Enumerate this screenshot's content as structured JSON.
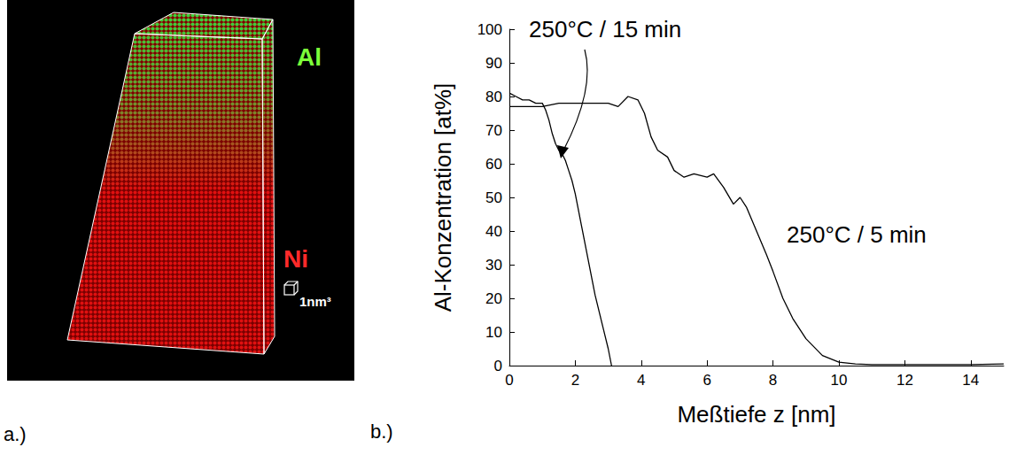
{
  "panels": {
    "a": {
      "label": "a.)",
      "image": {
        "top_label": "Al",
        "bottom_label": "Ni",
        "scale_label": "1nm³"
      }
    },
    "b": {
      "label": "b.)"
    }
  },
  "chart_data": {
    "type": "line",
    "x_label": "Meßtiefe z [nm]",
    "y_label": "Al-Konzentration [at%]",
    "xlim": [
      0,
      15
    ],
    "xticks": [
      0,
      2,
      4,
      6,
      8,
      10,
      12,
      14
    ],
    "ylim": [
      0,
      100
    ],
    "yticks": [
      0,
      10,
      20,
      30,
      40,
      50,
      60,
      70,
      80,
      90,
      100
    ],
    "grid": false,
    "series": [
      {
        "name": "250°C / 15 min",
        "color": "#000000",
        "x": [
          0,
          0.2,
          0.4,
          0.6,
          0.8,
          1.0,
          1.1,
          1.2,
          1.3,
          1.4,
          1.5,
          1.6,
          1.7,
          1.8,
          1.9,
          2.0,
          2.1,
          2.2,
          2.3,
          2.4,
          2.5,
          2.6,
          2.7,
          2.8,
          2.9,
          3.0,
          3.1
        ],
        "values": [
          81,
          80,
          79,
          79,
          78,
          78,
          76,
          73,
          69,
          66,
          64,
          63,
          61,
          58,
          55,
          51,
          46,
          41,
          36,
          31,
          26,
          21,
          17,
          13,
          9,
          5,
          0
        ]
      },
      {
        "name": "250°C / 5 min",
        "color": "#000000",
        "x": [
          0,
          0.5,
          1.0,
          1.5,
          2.0,
          2.5,
          3.0,
          3.3,
          3.6,
          3.9,
          4.1,
          4.3,
          4.5,
          4.8,
          5.0,
          5.3,
          5.6,
          6.0,
          6.2,
          6.5,
          6.8,
          7.0,
          7.2,
          7.5,
          7.8,
          8.0,
          8.3,
          8.6,
          9.0,
          9.5,
          10.0,
          10.5,
          11,
          12,
          13,
          14,
          15
        ],
        "values": [
          77,
          77,
          77,
          78,
          78,
          78,
          78,
          77,
          80,
          79,
          75,
          68,
          64,
          62,
          58,
          56,
          57,
          56,
          57,
          53,
          48,
          50,
          47,
          40,
          33,
          28,
          20,
          14,
          8,
          3,
          1,
          0.5,
          0.3,
          0.3,
          0.3,
          0.3,
          0.5
        ]
      }
    ]
  }
}
